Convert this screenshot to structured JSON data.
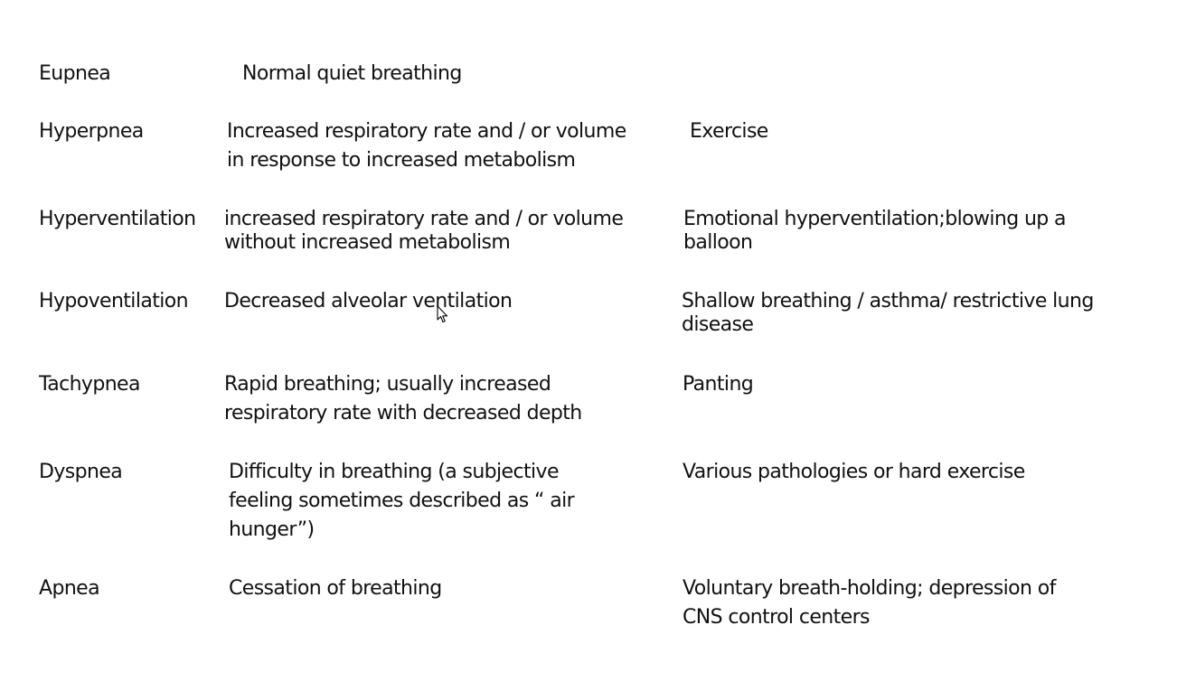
{
  "rows": [
    {
      "term": "Eupnea",
      "description": "Normal quiet breathing",
      "example": ""
    },
    {
      "term": "Hyperpnea",
      "description": "Increased respiratory rate and / or volume\n in response to increased metabolism",
      "example": "Exercise"
    },
    {
      "term": "Hyperventilation",
      "description": "increased respiratory rate and / or volume\n without increased metabolism",
      "example": "Emotional hyperventilation;blowing up a\nballoon"
    },
    {
      "term": "Hypoventilation",
      "description": "Decreased alveolar ventilation",
      "example": "Shallow breathing / asthma/ restrictive lung\ndisease"
    },
    {
      "term": "Tachypnea",
      "description": "Rapid breathing; usually increased\n respiratory rate with decreased depth",
      "example": "Panting"
    },
    {
      "term": "Dyspnea",
      "description": "Difficulty in breathing (a subjective\nfeeling sometimes described as “ air\nhunger”)",
      "example": "Various pathologies or hard exercise"
    },
    {
      "term": "Apnea",
      "description": "Cessation of breathing",
      "example": "Voluntary breath-holding; depression of\n CNS control centers"
    }
  ],
  "icons": {
    "cursor": "mouse-pointer-icon"
  }
}
